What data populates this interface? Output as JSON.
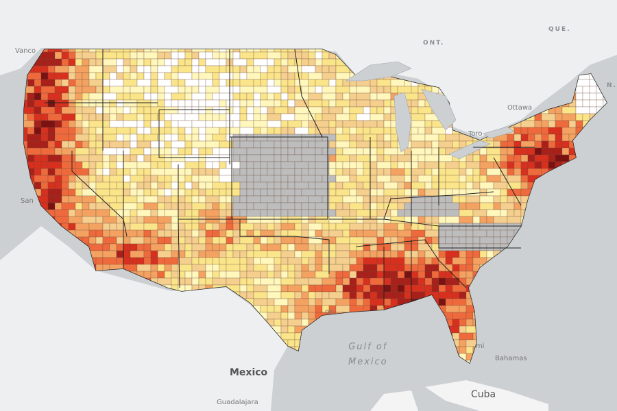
{
  "map": {
    "type": "county choropleth",
    "colors": {
      "ocean": "#ccd0d3",
      "land": "#eeeff0",
      "no_data": "#bdbdbd",
      "scale": [
        "#ffffff",
        "#fff7bc",
        "#fbe58a",
        "#f5cf8e",
        "#f4a261",
        "#ee6a3c",
        "#d7301f",
        "#a8201a",
        "#7a1212"
      ]
    },
    "no_data_regions": [
      "Nebraska",
      "Kansas",
      "Kentucky",
      "North Carolina"
    ]
  },
  "labels": {
    "ont": "ONT.",
    "que": "QUE.",
    "nb": "N.B",
    "ottawa": "Ottawa",
    "toronto": "Toro",
    "vancouver": "Vanco",
    "san_francisco": "San",
    "houston": "on",
    "miami": "mi",
    "gulf_line1": "Gulf of",
    "gulf_line2": "Mexico",
    "mexico": "Mexico",
    "guadalajara": "Guadalajara",
    "cuba": "Cuba",
    "bahamas": "Bahamas"
  }
}
